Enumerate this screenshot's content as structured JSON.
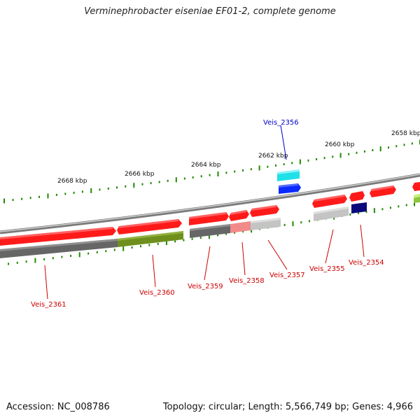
{
  "title": "Verminephrobacter eiseniae EF01-2, complete genome",
  "footer": {
    "accession": "Accession: NC_008786",
    "summary": "Topology: circular; Length: 5,566,749 bp; Genes: 4,966"
  },
  "scale": {
    "color": "#1f8a00",
    "labels": [
      "2668 kbp",
      "2666 kbp",
      "2664 kbp",
      "2662 kbp",
      "2660 kbp",
      "2658 kbp"
    ]
  },
  "colors": {
    "backbone": "#8a8a8a",
    "gene_label": "#cc0000",
    "highlight_label": "#0000cc"
  },
  "genes": [
    {
      "id": "Veis_2361",
      "strand": "+",
      "color": "#ff1a1a",
      "cog_color": "#6b6b6b"
    },
    {
      "id": "Veis_2360",
      "strand": "+",
      "color": "#ff1a1a",
      "cog_color": "#6e8f1c"
    },
    {
      "id": "Veis_2359",
      "strand": "+",
      "color": "#ff1a1a",
      "cog_color": "#6b6b6b"
    },
    {
      "id": "Veis_2358",
      "strand": "+",
      "color": "#ff1a1a",
      "cog_color": "#f28a8a"
    },
    {
      "id": "Veis_2357",
      "strand": "+",
      "color": "#ff1a1a",
      "cog_color": "#c4c4c4"
    },
    {
      "id": "Veis_2356",
      "strand": "-",
      "color": "#0a2aff",
      "cog_color": "#20e0e8"
    },
    {
      "id": "Veis_2355",
      "strand": "+",
      "color": "#ff1a1a",
      "cog_color": "#c4c4c4"
    },
    {
      "id": "Veis_2354",
      "strand": "+",
      "color": "#ff1a1a",
      "cog_color": "#0a0a7a"
    }
  ]
}
